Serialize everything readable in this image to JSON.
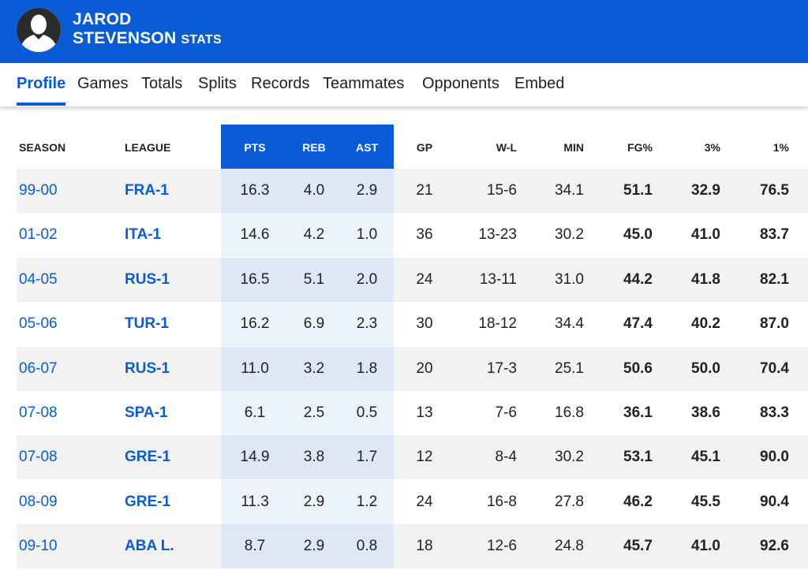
{
  "header": {
    "name_line1": "JAROD",
    "name_line2": "STEVENSON",
    "name_suffix": "STATS",
    "avatar_icon": "person-silhouette-icon",
    "bg_color": "#0a5bd6"
  },
  "tabs": [
    {
      "label": "Profile",
      "active": true
    },
    {
      "label": "Games"
    },
    {
      "label": "Totals"
    },
    {
      "label": "Splits"
    },
    {
      "label": "Records"
    },
    {
      "label": "Teammates"
    },
    {
      "label": "Opponents"
    },
    {
      "label": "Embed"
    }
  ],
  "table": {
    "columns": [
      "SEASON",
      "LEAGUE",
      "PTS",
      "REB",
      "AST",
      "GP",
      "W-L",
      "MIN",
      "FG%",
      "3%",
      "1%"
    ],
    "highlight_columns": [
      "PTS",
      "REB",
      "AST"
    ],
    "rows": [
      [
        "99-00",
        "FRA-1",
        "16.3",
        "4.0",
        "2.9",
        "21",
        "15-6",
        "34.1",
        "51.1",
        "32.9",
        "76.5"
      ],
      [
        "01-02",
        "ITA-1",
        "14.6",
        "4.2",
        "1.0",
        "36",
        "13-23",
        "30.2",
        "45.0",
        "41.0",
        "83.7"
      ],
      [
        "04-05",
        "RUS-1",
        "16.5",
        "5.1",
        "2.0",
        "24",
        "13-11",
        "31.0",
        "44.2",
        "41.8",
        "82.1"
      ],
      [
        "05-06",
        "TUR-1",
        "16.2",
        "6.9",
        "2.3",
        "30",
        "18-12",
        "34.4",
        "47.4",
        "40.2",
        "87.0"
      ],
      [
        "06-07",
        "RUS-1",
        "11.0",
        "3.2",
        "1.8",
        "20",
        "17-3",
        "25.1",
        "50.6",
        "50.0",
        "70.4"
      ],
      [
        "07-08",
        "SPA-1",
        "6.1",
        "2.5",
        "0.5",
        "13",
        "7-6",
        "16.8",
        "36.1",
        "38.6",
        "83.3"
      ],
      [
        "07-08",
        "GRE-1",
        "14.9",
        "3.8",
        "1.7",
        "12",
        "8-4",
        "30.2",
        "53.1",
        "45.1",
        "90.0"
      ],
      [
        "08-09",
        "GRE-1",
        "11.3",
        "2.9",
        "1.2",
        "24",
        "16-8",
        "27.8",
        "46.2",
        "45.5",
        "90.4"
      ],
      [
        "09-10",
        "ABA L.",
        "8.7",
        "2.9",
        "0.8",
        "18",
        "12-6",
        "24.8",
        "45.7",
        "41.0",
        "92.6"
      ]
    ]
  }
}
